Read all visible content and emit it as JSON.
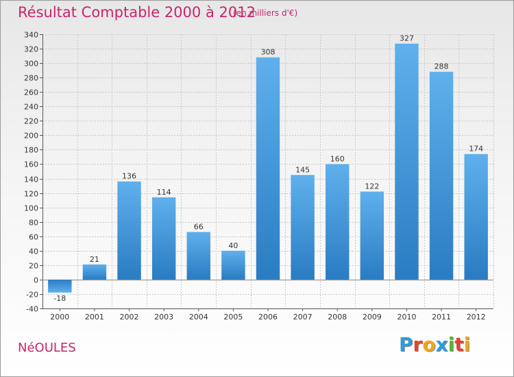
{
  "chart_data": {
    "type": "bar",
    "title": "Résultat Comptable 2000 à 2012",
    "subtitle": "(en milliers d'€)",
    "categories": [
      "2000",
      "2001",
      "2002",
      "2003",
      "2004",
      "2005",
      "2006",
      "2007",
      "2008",
      "2009",
      "2010",
      "2011",
      "2012"
    ],
    "values": [
      -18,
      21,
      136,
      114,
      66,
      40,
      308,
      145,
      160,
      122,
      327,
      288,
      174
    ],
    "value_labels": [
      "-18",
      "21",
      "136",
      "114",
      "66",
      "40",
      "308",
      "145",
      "160",
      "122",
      "327",
      "288",
      "174"
    ],
    "xlabel": "",
    "ylabel": "",
    "ylim": [
      -40,
      340
    ],
    "ytick_step": 20,
    "grid": true,
    "bar_color": "#4a9fe0",
    "bar_color_dark": "#2f7fc4"
  },
  "footer": {
    "town": "NéOULES",
    "logo_letters": [
      {
        "char": "P",
        "color": "#2e9ad8"
      },
      {
        "char": "r",
        "color": "#e0442c"
      },
      {
        "char": "o",
        "color": "#f2a619"
      },
      {
        "char": "x",
        "color": "#2e9ad8"
      },
      {
        "char": "i",
        "color": "#5bb534"
      },
      {
        "char": "t",
        "color": "#e0442c"
      },
      {
        "char": "i",
        "color": "#f2a619"
      }
    ]
  },
  "colors": {
    "title": "#c8246e",
    "grid": "#c8c8c8",
    "axis": "#555555"
  }
}
